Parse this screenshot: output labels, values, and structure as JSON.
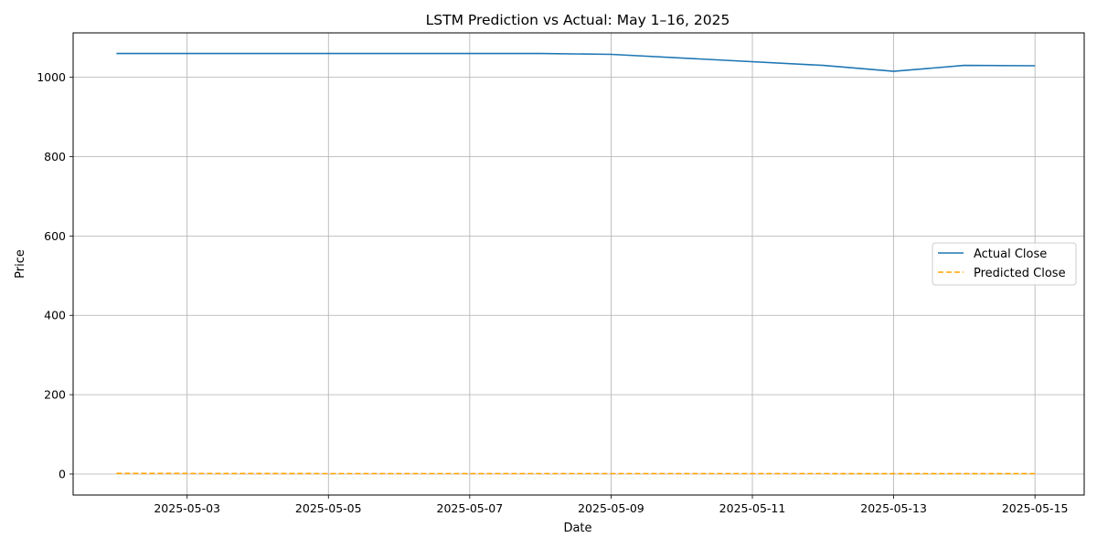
{
  "chart_data": {
    "type": "line",
    "title": "LSTM Prediction vs Actual: May 1–16, 2025",
    "xlabel": "Date",
    "ylabel": "Price",
    "x": [
      "2025-05-02",
      "2025-05-05",
      "2025-05-06",
      "2025-05-07",
      "2025-05-08",
      "2025-05-09",
      "2025-05-12",
      "2025-05-13",
      "2025-05-14",
      "2025-05-15"
    ],
    "series": [
      {
        "name": "Actual Close",
        "color": "#1f77b4",
        "style": "solid",
        "values": [
          1060,
          1060,
          1060,
          1060,
          1060,
          1058,
          1030,
          1015,
          1030,
          1029
        ]
      },
      {
        "name": "Predicted Close",
        "color": "#ffa500",
        "style": "dashed",
        "values": [
          1.5,
          1.2,
          1.1,
          1.1,
          1.1,
          1.0,
          1.0,
          0.9,
          0.9,
          0.8
        ]
      }
    ],
    "xticks": [
      "2025-05-03",
      "2025-05-05",
      "2025-05-07",
      "2025-05-09",
      "2025-05-11",
      "2025-05-13",
      "2025-05-15"
    ],
    "yticks": [
      0,
      200,
      400,
      600,
      800,
      1000
    ],
    "xlim": [
      "2025-05-01T09:17",
      "2025-05-15T16:43"
    ],
    "ylim": [
      -53,
      1112
    ],
    "grid": true,
    "legend_position": "center-right"
  }
}
